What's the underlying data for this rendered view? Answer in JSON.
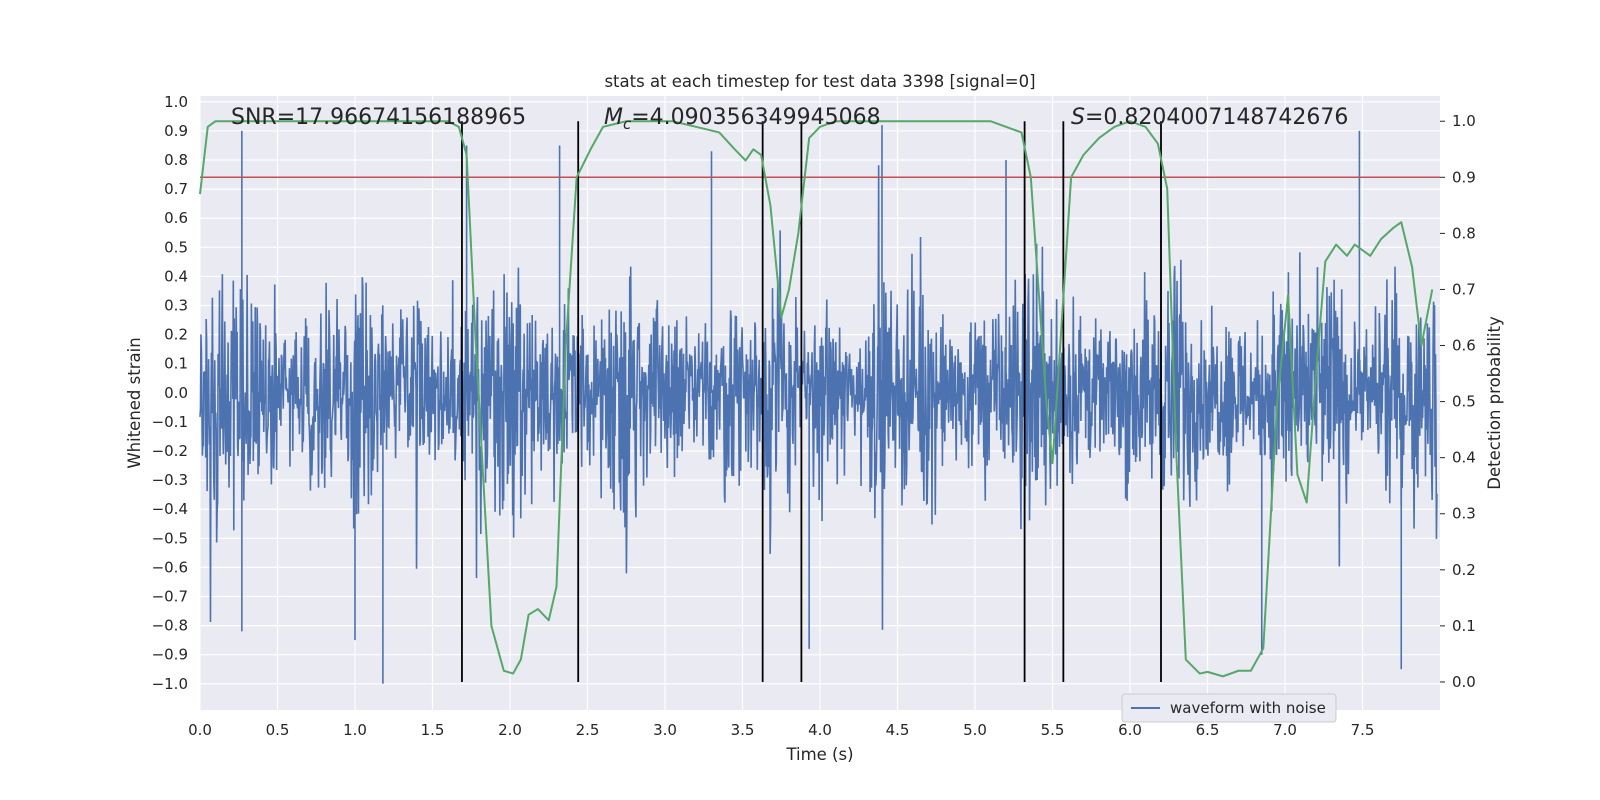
{
  "chart_data": {
    "type": "line",
    "title": "stats at each timestep for test data 3398 [signal=0]",
    "xlabel": "Time (s)",
    "ylabel_left": "Whitened strain",
    "ylabel_right": "Detection probability",
    "xlim": [
      0.0,
      8.0
    ],
    "ylim_left": [
      -1.09,
      1.02
    ],
    "ylim_right": [
      -0.05,
      1.045
    ],
    "x_ticks": [
      0.0,
      0.5,
      1.0,
      1.5,
      2.0,
      2.5,
      3.0,
      3.5,
      4.0,
      4.5,
      5.0,
      5.5,
      6.0,
      6.5,
      7.0,
      7.5
    ],
    "x_tick_labels": [
      "0.0",
      "0.5",
      "1.0",
      "1.5",
      "2.0",
      "2.5",
      "3.0",
      "3.5",
      "4.0",
      "4.5",
      "5.0",
      "5.5",
      "6.0",
      "6.5",
      "7.0",
      "7.5"
    ],
    "y_left_ticks": [
      1.0,
      0.9,
      0.8,
      0.7,
      0.6,
      0.5,
      0.4,
      0.3,
      0.2,
      0.1,
      0.0,
      -0.1,
      -0.2,
      -0.3,
      -0.4,
      -0.5,
      -0.6,
      -0.7,
      -0.8,
      -0.9,
      -1.0
    ],
    "y_left_tick_labels": [
      "1.0",
      "0.9",
      "0.8",
      "0.7",
      "0.6",
      "0.5",
      "0.4",
      "0.3",
      "0.2",
      "0.1",
      "0.0",
      "−0.1",
      "−0.2",
      "−0.3",
      "−0.4",
      "−0.5",
      "−0.6",
      "−0.7",
      "−0.8",
      "−0.9",
      "−1.0"
    ],
    "y_right_ticks": [
      1.0,
      0.9,
      0.8,
      0.7,
      0.6,
      0.5,
      0.4,
      0.3,
      0.2,
      0.1,
      0.0
    ],
    "y_right_tick_labels": [
      "1.0",
      "0.9",
      "0.8",
      "0.7",
      "0.6",
      "0.5",
      "0.4",
      "0.3",
      "0.2",
      "0.1",
      "0.0"
    ],
    "annotations": {
      "snr": "SNR=17.96674156188965",
      "mc_symbol": "M",
      "mc_subscript": "c",
      "mc_value": "=4.090356349945068",
      "s_symbol": "S",
      "s_value": "=0.8204007148742676"
    },
    "threshold_line": {
      "axis": "right",
      "value": 0.9,
      "color": "#c44e52"
    },
    "vertical_lines": [
      1.69,
      2.44,
      3.63,
      3.88,
      5.32,
      5.57,
      6.2
    ],
    "vertical_line_range_right": [
      0.0,
      1.0
    ],
    "legend": {
      "label": "waveform with noise",
      "position": "lower-right"
    },
    "series": [
      {
        "name": "waveform with noise",
        "axis": "left",
        "color": "#4c72b0",
        "envelope": "dense noise, roughly ±0.3 to ±0.6 with peaks near ±0.9",
        "peak_spikes": [
          {
            "x": 0.27,
            "v": 0.9
          },
          {
            "x": 1.18,
            "v": -1.0
          },
          {
            "x": 1.72,
            "v": 0.85
          },
          {
            "x": 2.32,
            "v": 0.85
          },
          {
            "x": 3.3,
            "v": 0.83
          },
          {
            "x": 4.4,
            "v": 0.92
          },
          {
            "x": 5.2,
            "v": 0.8
          },
          {
            "x": 6.2,
            "v": 0.82
          },
          {
            "x": 6.85,
            "v": -0.9
          },
          {
            "x": 7.48,
            "v": 0.9
          },
          {
            "x": 7.75,
            "v": -0.95
          },
          {
            "x": 0.27,
            "v": -0.82
          },
          {
            "x": 1.0,
            "v": -0.85
          },
          {
            "x": 3.93,
            "v": -0.88
          }
        ]
      },
      {
        "name": "detection probability",
        "axis": "right",
        "color": "#55a868",
        "x": [
          0.0,
          0.05,
          0.1,
          0.2,
          0.4,
          0.6,
          0.8,
          1.0,
          1.2,
          1.4,
          1.6,
          1.67,
          1.72,
          1.78,
          1.88,
          1.96,
          2.02,
          2.07,
          2.12,
          2.18,
          2.25,
          2.3,
          2.36,
          2.43,
          2.52,
          2.6,
          2.75,
          2.9,
          3.05,
          3.2,
          3.35,
          3.45,
          3.52,
          3.57,
          3.62,
          3.68,
          3.75,
          3.8,
          3.86,
          3.93,
          4.0,
          4.1,
          4.3,
          4.5,
          4.7,
          4.9,
          5.1,
          5.2,
          5.3,
          5.36,
          5.41,
          5.46,
          5.5,
          5.55,
          5.62,
          5.7,
          5.8,
          5.9,
          6.0,
          6.1,
          6.18,
          6.24,
          6.3,
          6.36,
          6.45,
          6.5,
          6.6,
          6.7,
          6.78,
          6.86,
          6.95,
          7.02,
          7.08,
          7.14,
          7.2,
          7.26,
          7.33,
          7.4,
          7.45,
          7.5,
          7.55,
          7.62,
          7.7,
          7.75,
          7.82,
          7.88,
          7.95
        ],
        "values": [
          0.87,
          0.99,
          1.0,
          1.0,
          1.0,
          1.0,
          1.0,
          1.0,
          1.0,
          1.0,
          1.0,
          0.99,
          0.94,
          0.6,
          0.1,
          0.02,
          0.015,
          0.04,
          0.12,
          0.13,
          0.11,
          0.17,
          0.6,
          0.9,
          0.95,
          0.99,
          1.0,
          1.0,
          1.0,
          0.99,
          0.98,
          0.95,
          0.93,
          0.95,
          0.94,
          0.85,
          0.65,
          0.7,
          0.8,
          0.97,
          0.99,
          1.0,
          1.0,
          1.0,
          1.0,
          1.0,
          1.0,
          0.99,
          0.98,
          0.9,
          0.7,
          0.5,
          0.39,
          0.6,
          0.9,
          0.94,
          0.97,
          0.99,
          1.0,
          0.99,
          0.96,
          0.88,
          0.4,
          0.04,
          0.015,
          0.018,
          0.01,
          0.02,
          0.02,
          0.06,
          0.5,
          0.69,
          0.37,
          0.32,
          0.55,
          0.75,
          0.78,
          0.76,
          0.78,
          0.77,
          0.76,
          0.79,
          0.81,
          0.82,
          0.74,
          0.6,
          0.7
        ]
      }
    ]
  }
}
